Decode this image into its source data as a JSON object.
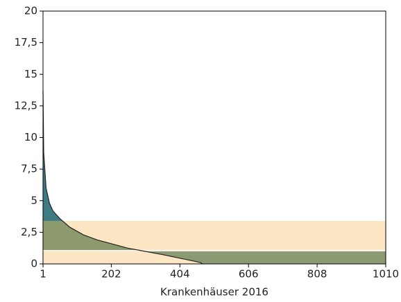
{
  "chart_data": {
    "type": "area",
    "x_label": "Krankenhäuser 2016",
    "xlim": [
      1,
      1010
    ],
    "xticks": [
      1,
      202,
      404,
      606,
      808,
      1010
    ],
    "ylim": [
      0,
      20
    ],
    "yticks": [
      0,
      {
        "value": 2.5,
        "label": "2,5"
      },
      5,
      {
        "value": 7.5,
        "label": "7,5"
      },
      10,
      {
        "value": 12.5,
        "label": "12,5"
      },
      15,
      {
        "value": 17.5,
        "label": "17,5"
      },
      20
    ],
    "bands": [
      {
        "from": 0,
        "to": 1.0,
        "color": "#8b9a72",
        "curve_color": "#fde6c4"
      },
      {
        "from": 1.1,
        "to": 3.4,
        "color": "#fde6c4",
        "curve_color": "#8d9a6d"
      },
      {
        "from": 3.4,
        "to": 20,
        "color": "#ffffff",
        "curve_color": "#3d7c83"
      }
    ],
    "x": [
      1,
      3,
      10,
      20,
      30,
      50,
      80,
      120,
      160,
      202,
      250,
      300,
      350,
      404,
      440,
      465,
      470
    ],
    "values": [
      13.7,
      8.8,
      6.0,
      4.8,
      4.2,
      3.6,
      2.9,
      2.3,
      1.9,
      1.6,
      1.25,
      1.0,
      0.75,
      0.45,
      0.25,
      0.1,
      0
    ],
    "line_color": "#222222"
  }
}
